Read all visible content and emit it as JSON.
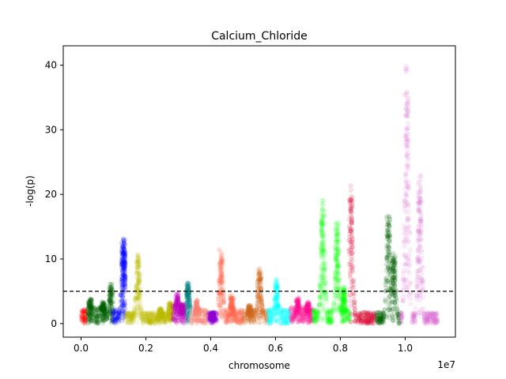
{
  "chart_data": {
    "type": "scatter",
    "title": "Calcium_Chloride",
    "xlabel": "chromosome",
    "ylabel": "-log(p)",
    "x_offset_label": "1e7",
    "xlim": [
      -0.055,
      1.155
    ],
    "ylim": [
      -2.1,
      43.0
    ],
    "x_unit_note": "x values expressed in units of 1e7",
    "x_ticks": [
      0.0,
      0.2,
      0.4,
      0.6,
      0.8,
      1.0
    ],
    "x_tick_labels": [
      "0.0",
      "0.2",
      "0.4",
      "0.6",
      "0.8",
      "1.0"
    ],
    "y_ticks": [
      0,
      10,
      20,
      30,
      40
    ],
    "y_tick_labels": [
      "0",
      "10",
      "20",
      "30",
      "40"
    ],
    "threshold": 5,
    "threshold_style": "dashed",
    "grid": false,
    "legend": "none",
    "marker_alpha": 0.12,
    "segments": [
      {
        "start": 0.0,
        "end": 0.018,
        "color": "#ff0000",
        "base": 1.0,
        "peaks": []
      },
      {
        "start": 0.02,
        "end": 0.095,
        "color": "#006400",
        "base": 1.2,
        "peaks": [
          {
            "x": 0.028,
            "h": 4.0
          },
          {
            "x": 0.068,
            "h": 3.6
          },
          {
            "x": 0.093,
            "h": 6.3
          }
        ]
      },
      {
        "start": 0.097,
        "end": 0.125,
        "color": "#0000ff",
        "base": 1.0,
        "peaks": [
          {
            "x": 0.131,
            "h": 13.6
          }
        ]
      },
      {
        "start": 0.126,
        "end": 0.137,
        "color": "#0000ff",
        "base": 2.0,
        "peaks": [
          {
            "x": 0.131,
            "h": 13.6
          }
        ]
      },
      {
        "start": 0.138,
        "end": 0.282,
        "color": "#bfbf00",
        "base": 0.8,
        "peaks": [
          {
            "x": 0.175,
            "h": 11.0
          },
          {
            "x": 0.245,
            "h": 2.4
          },
          {
            "x": 0.275,
            "h": 3.4
          }
        ]
      },
      {
        "start": 0.283,
        "end": 0.325,
        "color": "#bf00bf",
        "base": 1.4,
        "peaks": [
          {
            "x": 0.296,
            "h": 5.0
          },
          {
            "x": 0.312,
            "h": 3.2
          }
        ]
      },
      {
        "start": 0.326,
        "end": 0.338,
        "color": "#008080",
        "base": 0.9,
        "peaks": [
          {
            "x": 0.33,
            "h": 6.5
          }
        ]
      },
      {
        "start": 0.339,
        "end": 0.39,
        "color": "#fa8072",
        "base": 1.0,
        "peaks": [
          {
            "x": 0.358,
            "h": 3.8
          }
        ]
      },
      {
        "start": 0.391,
        "end": 0.42,
        "color": "#9400d3",
        "base": 0.8,
        "peaks": [
          {
            "x": 0.405,
            "h": 1.8
          }
        ]
      },
      {
        "start": 0.421,
        "end": 0.5,
        "color": "#ff6347",
        "base": 1.0,
        "peaks": [
          {
            "x": 0.432,
            "h": 12.0
          },
          {
            "x": 0.465,
            "h": 4.6
          }
        ]
      },
      {
        "start": 0.501,
        "end": 0.575,
        "color": "#d2691e",
        "base": 1.0,
        "peaks": [
          {
            "x": 0.55,
            "h": 8.8
          },
          {
            "x": 0.52,
            "h": 3.0
          }
        ]
      },
      {
        "start": 0.576,
        "end": 0.645,
        "color": "#00ffff",
        "base": 1.0,
        "peaks": [
          {
            "x": 0.603,
            "h": 7.1
          }
        ]
      },
      {
        "start": 0.646,
        "end": 0.715,
        "color": "#ff1493",
        "base": 1.2,
        "peaks": [
          {
            "x": 0.668,
            "h": 4.2
          },
          {
            "x": 0.7,
            "h": 3.5
          }
        ]
      },
      {
        "start": 0.716,
        "end": 0.83,
        "color": "#00ff00",
        "base": 1.0,
        "peaks": [
          {
            "x": 0.746,
            "h": 19.8
          },
          {
            "x": 0.79,
            "h": 16.0
          },
          {
            "x": 0.81,
            "h": 6.0
          }
        ]
      },
      {
        "start": 0.831,
        "end": 0.91,
        "color": "#dc143c",
        "base": 0.8,
        "peaks": [
          {
            "x": 0.832,
            "h": 22.0
          }
        ]
      },
      {
        "start": 0.911,
        "end": 0.985,
        "color": "#006400",
        "base": 0.8,
        "peaks": [
          {
            "x": 0.948,
            "h": 17.8
          },
          {
            "x": 0.965,
            "h": 11.0
          }
        ]
      },
      {
        "start": 0.986,
        "end": 1.1,
        "color": "#da70d6",
        "base": 0.8,
        "peaks": [
          {
            "x": 1.005,
            "h": 40.9
          },
          {
            "x": 1.045,
            "h": 23.5
          }
        ]
      }
    ]
  }
}
